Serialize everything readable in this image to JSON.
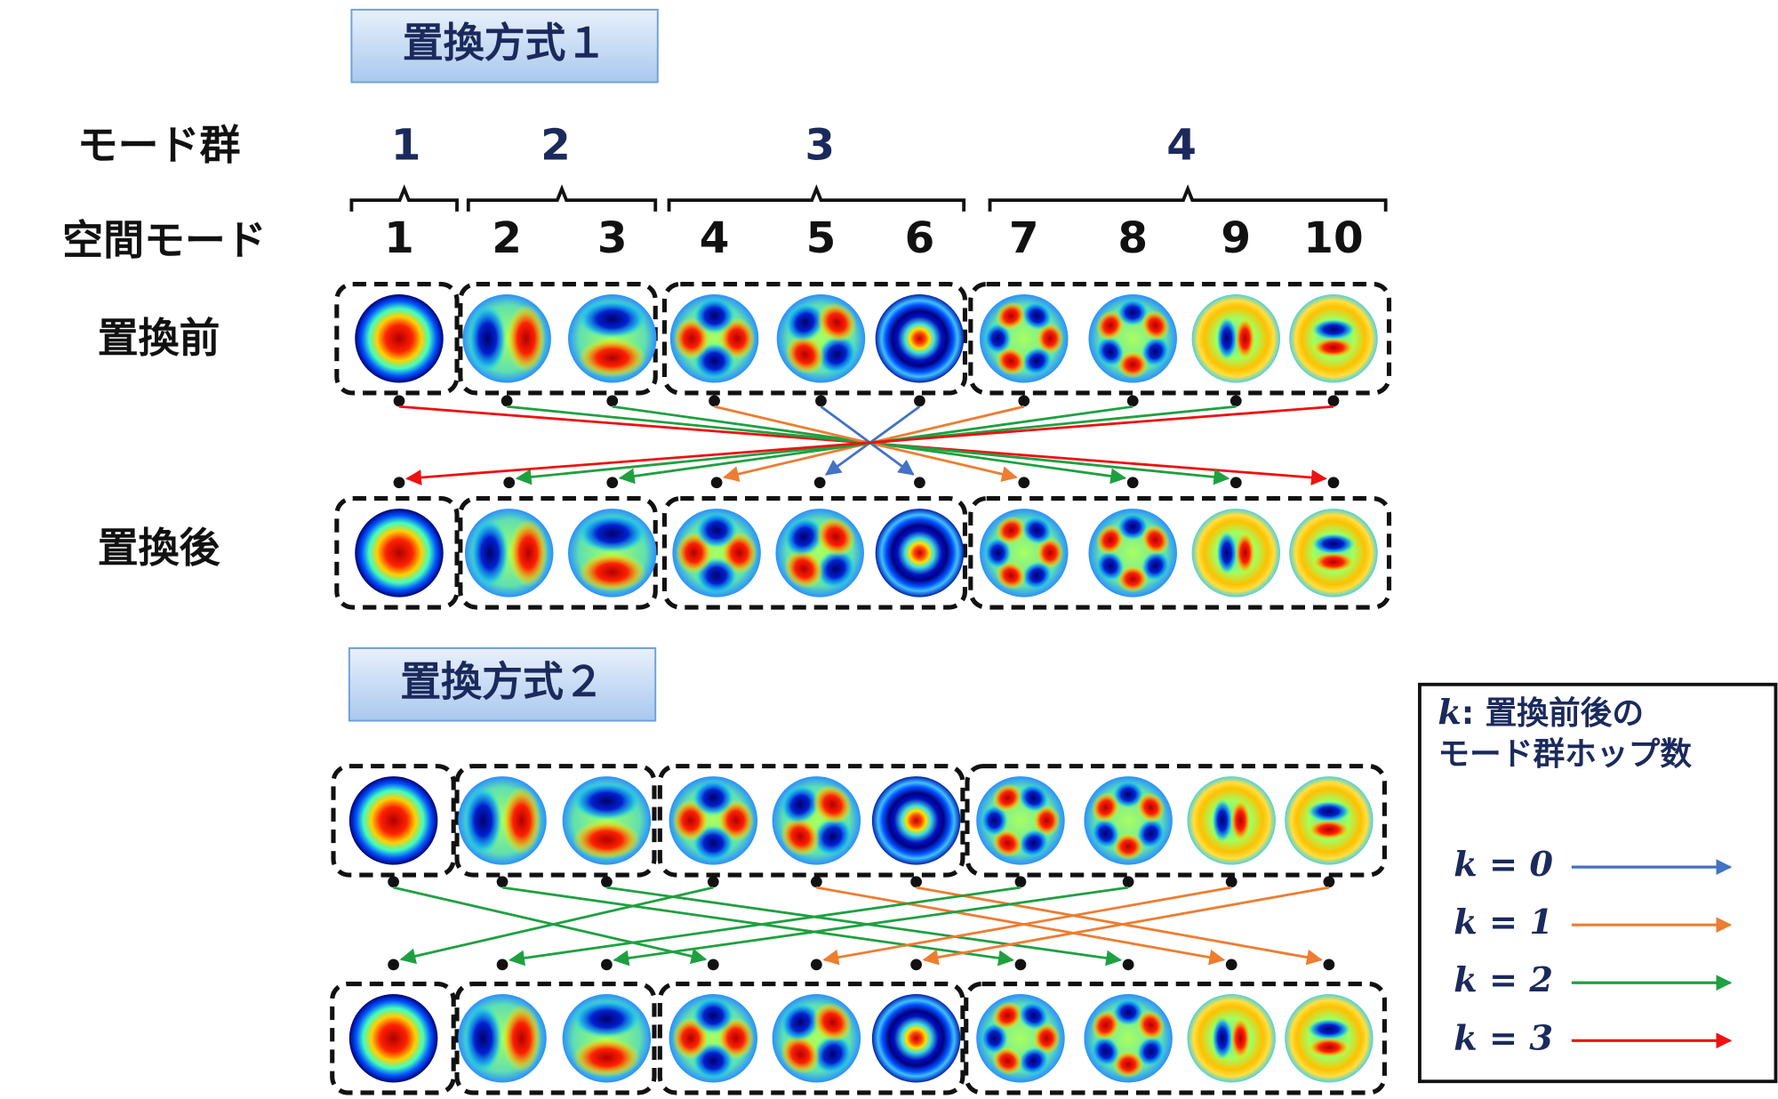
{
  "schemes": [
    {
      "title": "置換方式１"
    },
    {
      "title": "置換方式２"
    }
  ],
  "row_labels": {
    "mode_group": "モード群",
    "spatial_mode": "空間モード",
    "before": "置換前",
    "after": "置換後"
  },
  "mode_groups": [
    "1",
    "2",
    "3",
    "4"
  ],
  "spatial_modes": [
    "1",
    "2",
    "3",
    "4",
    "5",
    "6",
    "7",
    "8",
    "9",
    "10"
  ],
  "legend": {
    "title_k": "k",
    "title_line1": ": 置換前後の",
    "title_line2": "モード群ホップ数",
    "items": [
      {
        "label": "k = 0",
        "color": "#4472c4"
      },
      {
        "label": "k = 1",
        "color": "#ed7d31"
      },
      {
        "label": "k = 2",
        "color": "#1fa040"
      },
      {
        "label": "k = 3",
        "color": "#ee1111"
      }
    ]
  }
}
